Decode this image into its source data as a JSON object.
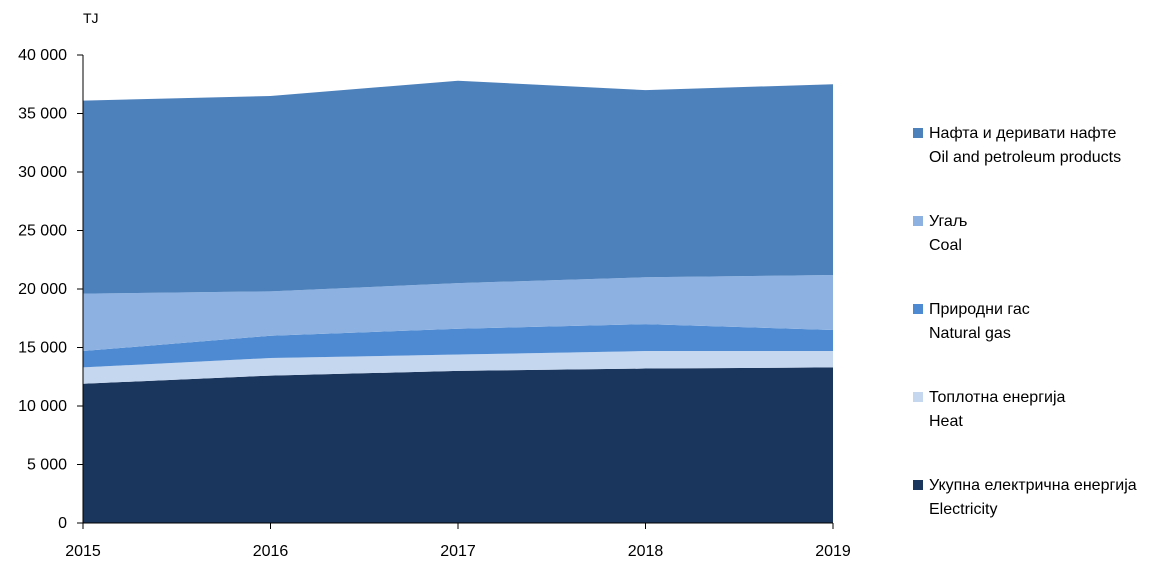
{
  "chart_data": {
    "type": "area",
    "stacked": true,
    "title": "",
    "xlabel": "",
    "ylabel": "TJ",
    "x": [
      "2015",
      "2016",
      "2017",
      "2018",
      "2019"
    ],
    "ylim": [
      0,
      40000
    ],
    "yticks": [
      0,
      5000,
      10000,
      15000,
      20000,
      25000,
      30000,
      35000,
      40000
    ],
    "ytick_labels": [
      "0",
      "5 000",
      "10 000",
      "15 000",
      "20 000",
      "25 000",
      "30 000",
      "35 000",
      "40 000"
    ],
    "grid": false,
    "legend_position": "right",
    "series": [
      {
        "name": "Укупна електрична енергија",
        "name_en": "Electricity",
        "color": "#1b365d",
        "values": [
          11900,
          12600,
          13000,
          13200,
          13300
        ]
      },
      {
        "name": "Топлотна енергија",
        "name_en": "Heat",
        "color": "#c5d7ef",
        "values": [
          1400,
          1500,
          1400,
          1500,
          1400
        ]
      },
      {
        "name": "Природни гас",
        "name_en": "Natural gas",
        "color": "#4e8ad2",
        "values": [
          1400,
          1900,
          2200,
          2300,
          1800
        ]
      },
      {
        "name": "Угаљ",
        "name_en": "Coal",
        "color": "#8db2e2",
        "values": [
          4900,
          3800,
          3900,
          4000,
          4700
        ]
      },
      {
        "name": "Нафта и деривати нафте",
        "name_en": "Oil and petroleum products",
        "color": "#4d81bc",
        "values": [
          16500,
          16700,
          17300,
          16000,
          16300
        ]
      }
    ]
  }
}
